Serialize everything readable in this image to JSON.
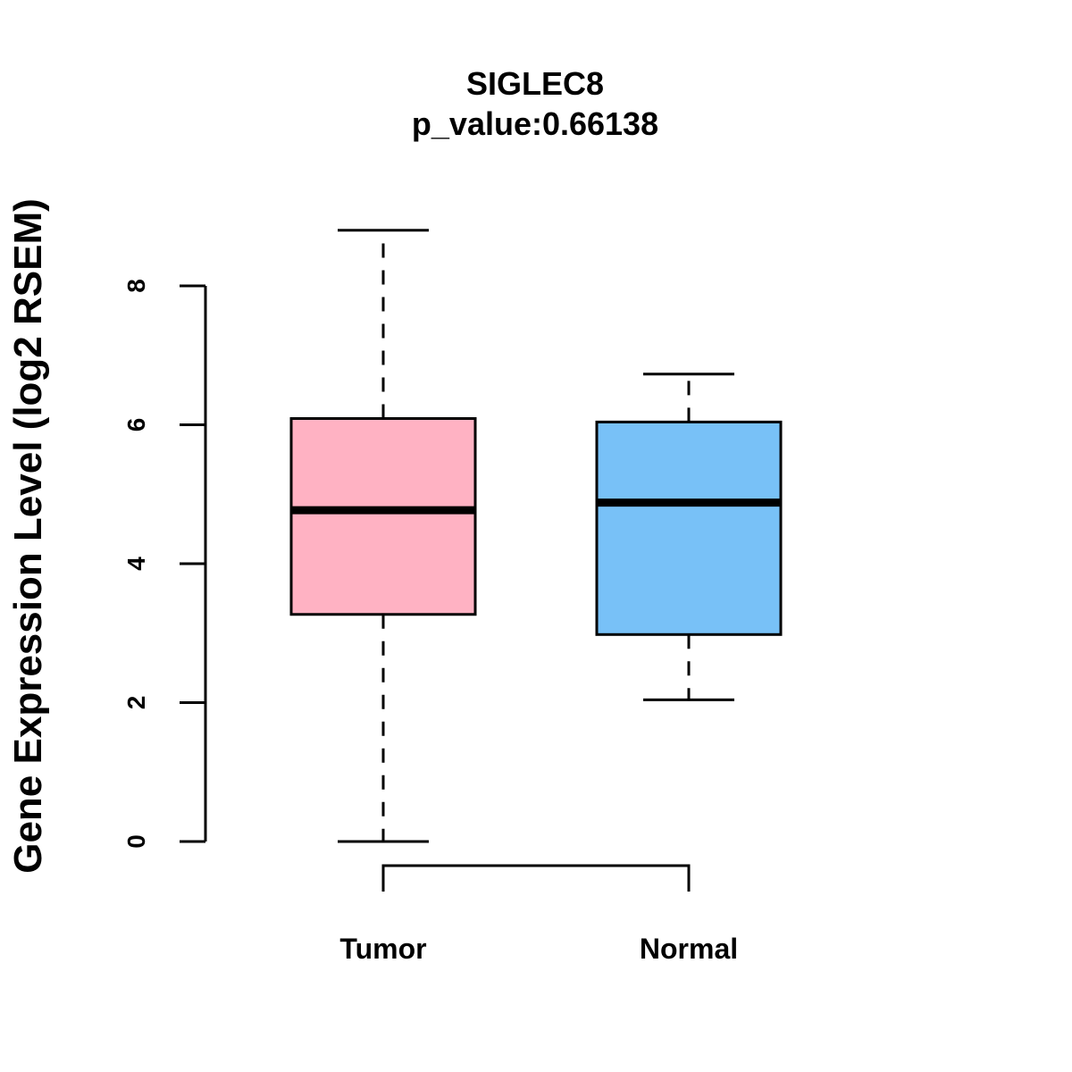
{
  "chart_data": {
    "type": "boxplot",
    "title": "SIGLEC8",
    "subtitle": "p_value:0.66138",
    "ylabel": "Gene Expression Level (log2 RSEM)",
    "xlabel": "",
    "ylim": [
      0,
      8
    ],
    "yticks": [
      "0",
      "2",
      "4",
      "6",
      "8"
    ],
    "groups": [
      {
        "name": "Tumor",
        "min": 0.0,
        "q1": 3.27,
        "median": 4.77,
        "q3": 6.09,
        "max": 8.8,
        "color": "#FFB2C3"
      },
      {
        "name": "Normal",
        "min": 2.04,
        "q1": 2.98,
        "median": 4.88,
        "q3": 6.04,
        "max": 6.73,
        "color": "#78C1F7"
      }
    ],
    "comparison_bracket": [
      "Tumor",
      "Normal"
    ]
  }
}
